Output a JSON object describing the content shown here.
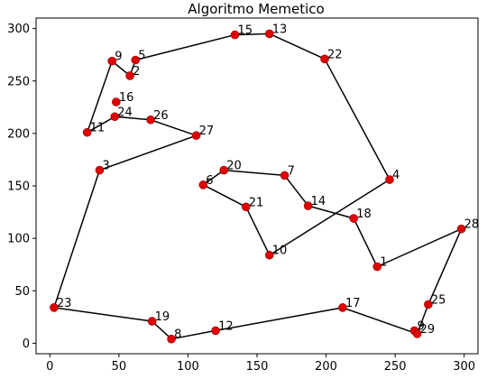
{
  "chart_data": {
    "type": "scatter",
    "title": "Algoritmo Memetico",
    "xlabel": "",
    "ylabel": "",
    "xlim": [
      -10,
      310
    ],
    "ylim": [
      -10,
      310
    ],
    "xticks": [
      0,
      50,
      100,
      150,
      200,
      250,
      300
    ],
    "yticks": [
      0,
      50,
      100,
      150,
      200,
      250,
      300
    ],
    "grid": false,
    "colors": {
      "line": "#000000",
      "marker": "#e00000",
      "marker_edge": "#8b0000",
      "axes": "#000000"
    },
    "points": [
      {
        "id": "1",
        "x": 237,
        "y": 73
      },
      {
        "id": "2",
        "x": 58,
        "y": 255
      },
      {
        "id": "3",
        "x": 36,
        "y": 165
      },
      {
        "id": "4",
        "x": 246,
        "y": 156
      },
      {
        "id": "5",
        "x": 62,
        "y": 270
      },
      {
        "id": "6",
        "x": 111,
        "y": 151
      },
      {
        "id": "8",
        "x": 88,
        "y": 4
      },
      {
        "id": "9",
        "x": 45,
        "y": 269
      },
      {
        "id": "10",
        "x": 159,
        "y": 84
      },
      {
        "id": "11",
        "x": 27,
        "y": 201
      },
      {
        "id": "12",
        "x": 120,
        "y": 12
      },
      {
        "id": "13",
        "x": 159,
        "y": 295
      },
      {
        "id": "15",
        "x": 134,
        "y": 294
      },
      {
        "id": "16",
        "x": 48,
        "y": 230
      },
      {
        "id": "17",
        "x": 212,
        "y": 34
      },
      {
        "id": "18",
        "x": 220,
        "y": 119
      },
      {
        "id": "14",
        "x": 187,
        "y": 131
      },
      {
        "id": "19",
        "x": 74,
        "y": 21
      },
      {
        "id": "20",
        "x": 126,
        "y": 165
      },
      {
        "id": "7",
        "x": 170,
        "y": 160
      },
      {
        "id": "21",
        "x": 142,
        "y": 130
      },
      {
        "id": "22",
        "x": 199,
        "y": 271
      },
      {
        "id": "23",
        "x": 3,
        "y": 34
      },
      {
        "id": "24",
        "x": 47,
        "y": 216
      },
      {
        "id": "25",
        "x": 274,
        "y": 37
      },
      {
        "id": "26",
        "x": 73,
        "y": 213
      },
      {
        "id": "27",
        "x": 106,
        "y": 198
      },
      {
        "id": "28",
        "x": 298,
        "y": 109
      },
      {
        "id": "9b",
        "label": "9",
        "x": 264,
        "y": 12
      },
      {
        "id": "29",
        "x": 266,
        "y": 9
      }
    ],
    "route": [
      "15",
      "13",
      "22",
      "4",
      "10",
      "21",
      "6",
      "20",
      "7",
      "14",
      "18",
      "1",
      "28",
      "25",
      "29",
      "17",
      "12",
      "8",
      "19",
      "23",
      "3",
      "27",
      "26",
      "24",
      "11",
      "9",
      "2",
      "5",
      "15"
    ],
    "label_overrides": {
      "9b": "9"
    }
  }
}
